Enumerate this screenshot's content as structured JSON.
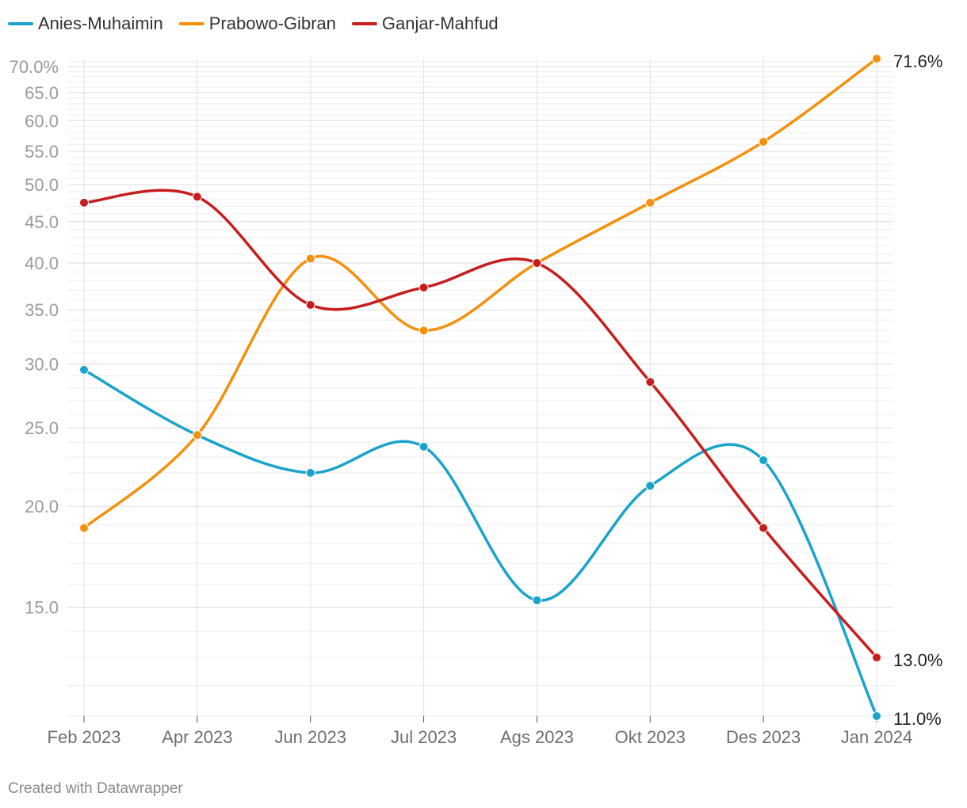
{
  "credit": "Created with Datawrapper",
  "chart_data": {
    "type": "line",
    "title": "",
    "xlabel": "",
    "ylabel": "",
    "y_scale": "log",
    "ylim": [
      11.0,
      71.6
    ],
    "y_ticks": [
      15,
      20,
      25,
      30,
      35,
      40,
      45,
      50,
      55,
      60,
      65,
      70
    ],
    "y_tick_labels": [
      "15.0",
      "20.0",
      "25.0",
      "30.0",
      "35.0",
      "40.0",
      "45.0",
      "50.0",
      "55.0",
      "60.0",
      "65.0",
      "70.0%"
    ],
    "categories": [
      "Feb 2023",
      "Apr 2023",
      "Jun 2023",
      "Jul 2023",
      "Ags 2023",
      "Okt 2023",
      "Des 2023",
      "Jan 2024"
    ],
    "series": [
      {
        "name": "Anies-Muhaimin",
        "color": "#1aa3cc",
        "values": [
          29.5,
          24.5,
          22.0,
          23.7,
          15.3,
          21.2,
          22.8,
          11.0
        ],
        "end_label": "11.0%"
      },
      {
        "name": "Prabowo-Gibran",
        "color": "#f4900c",
        "values": [
          18.8,
          24.5,
          40.5,
          33.0,
          40.0,
          47.5,
          56.5,
          71.6
        ],
        "end_label": "71.6%"
      },
      {
        "name": "Ganjar-Mahfud",
        "color": "#c71e1d",
        "values": [
          47.5,
          48.3,
          35.5,
          37.3,
          40.0,
          28.5,
          18.8,
          13.0
        ],
        "end_label": "13.0%"
      }
    ]
  }
}
